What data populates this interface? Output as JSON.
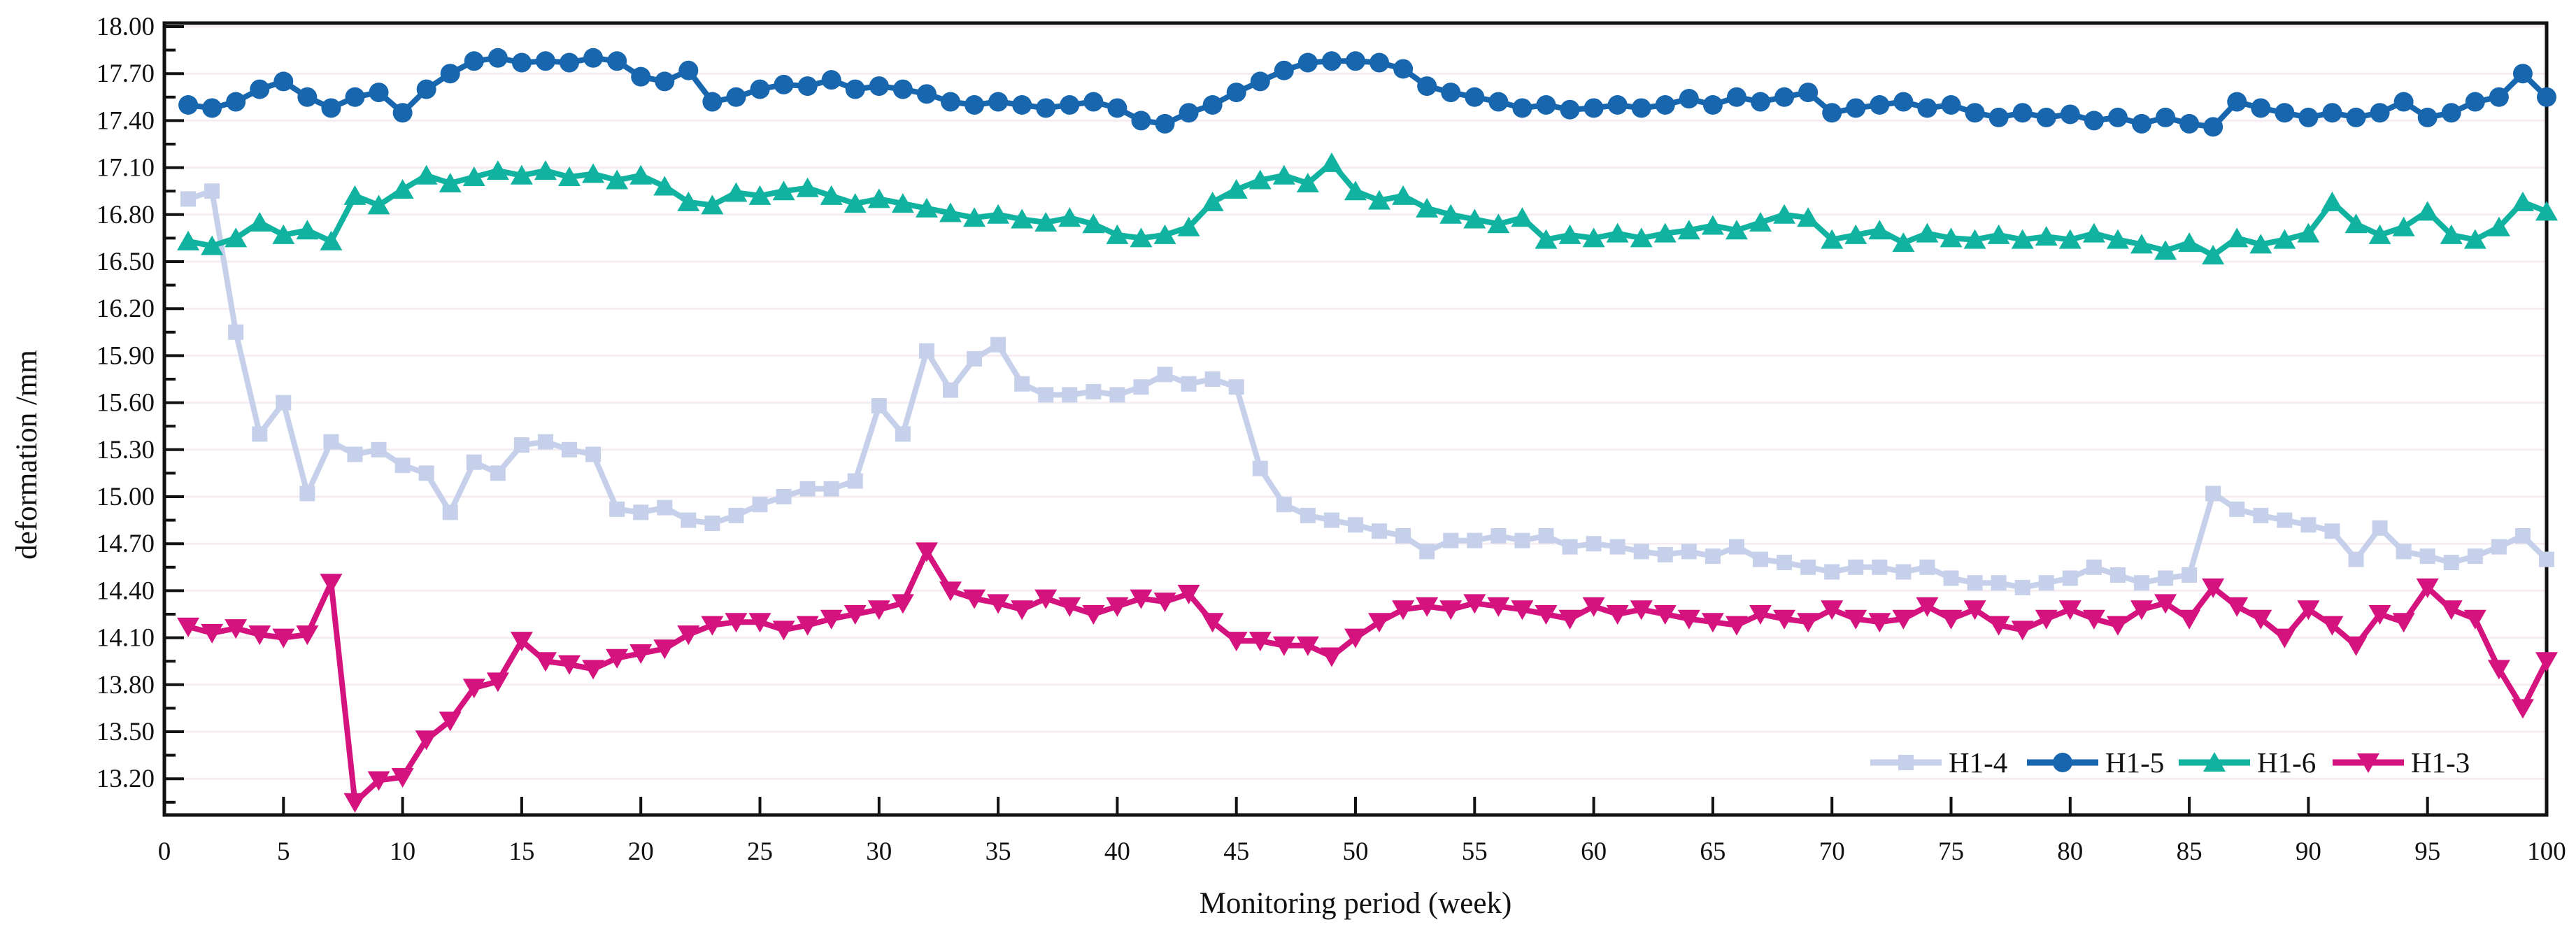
{
  "chart_data": {
    "type": "line",
    "title": "",
    "xlabel": "Monitoring period (week)",
    "ylabel": "deformation /mm",
    "xlim": [
      0,
      100
    ],
    "ylim": [
      12.96,
      18.0
    ],
    "x_tick_step": 5,
    "x_tick_labels": [
      "0",
      "5",
      "10",
      "15",
      "20",
      "25",
      "30",
      "35",
      "40",
      "45",
      "50",
      "55",
      "60",
      "65",
      "70",
      "75",
      "80",
      "85",
      "90",
      "95",
      "100"
    ],
    "y_tick_labels": [
      "18.00",
      "17.70",
      "17.40",
      "17.10",
      "16.80",
      "16.50",
      "16.20",
      "15.90",
      "15.60",
      "15.30",
      "15.00",
      "14.70",
      "14.40",
      "14.10",
      "13.80",
      "13.50",
      "13.20"
    ],
    "y_major_step": 0.3,
    "y_minor_step": 0.15,
    "grid": "faint-horizontal-major",
    "legend_position": "bottom-right-inside",
    "legend": [
      "H1-4",
      "H1-5",
      "H1-6",
      "H1-3"
    ],
    "x_start": 1,
    "x_step": 1,
    "series": [
      {
        "name": "H1-4",
        "color": "#c6d0ea",
        "marker": "square",
        "values": [
          16.9,
          16.95,
          16.05,
          15.4,
          15.6,
          15.02,
          15.35,
          15.27,
          15.3,
          15.2,
          15.15,
          14.9,
          15.22,
          15.15,
          15.33,
          15.35,
          15.3,
          15.27,
          14.92,
          14.9,
          14.93,
          14.85,
          14.83,
          14.88,
          14.95,
          15.0,
          15.05,
          15.05,
          15.1,
          15.58,
          15.4,
          15.93,
          15.68,
          15.88,
          15.97,
          15.72,
          15.65,
          15.65,
          15.67,
          15.65,
          15.7,
          15.78,
          15.72,
          15.75,
          15.7,
          15.18,
          14.95,
          14.88,
          14.85,
          14.82,
          14.78,
          14.75,
          14.65,
          14.72,
          14.72,
          14.75,
          14.72,
          14.75,
          14.68,
          14.7,
          14.68,
          14.65,
          14.63,
          14.65,
          14.62,
          14.68,
          14.6,
          14.58,
          14.55,
          14.52,
          14.55,
          14.55,
          14.52,
          14.55,
          14.48,
          14.45,
          14.45,
          14.42,
          14.45,
          14.48,
          14.55,
          14.5,
          14.45,
          14.48,
          14.5,
          15.02,
          14.92,
          14.88,
          14.85,
          14.82,
          14.78,
          14.6,
          14.8,
          14.65,
          14.62,
          14.58,
          14.62,
          14.68,
          14.75,
          14.6
        ]
      },
      {
        "name": "H1-5",
        "color": "#1766ae",
        "marker": "circle",
        "values": [
          17.5,
          17.48,
          17.52,
          17.6,
          17.65,
          17.55,
          17.48,
          17.55,
          17.58,
          17.45,
          17.6,
          17.7,
          17.78,
          17.8,
          17.77,
          17.78,
          17.77,
          17.8,
          17.78,
          17.68,
          17.65,
          17.72,
          17.52,
          17.55,
          17.6,
          17.63,
          17.62,
          17.66,
          17.6,
          17.62,
          17.6,
          17.57,
          17.52,
          17.5,
          17.52,
          17.5,
          17.48,
          17.5,
          17.52,
          17.48,
          17.4,
          17.38,
          17.45,
          17.5,
          17.58,
          17.65,
          17.72,
          17.77,
          17.78,
          17.78,
          17.77,
          17.73,
          17.62,
          17.58,
          17.55,
          17.52,
          17.48,
          17.5,
          17.47,
          17.48,
          17.5,
          17.48,
          17.5,
          17.54,
          17.5,
          17.55,
          17.52,
          17.55,
          17.58,
          17.45,
          17.48,
          17.5,
          17.52,
          17.48,
          17.5,
          17.45,
          17.42,
          17.45,
          17.42,
          17.44,
          17.4,
          17.42,
          17.38,
          17.42,
          17.38,
          17.36,
          17.52,
          17.48,
          17.45,
          17.42,
          17.45,
          17.42,
          17.45,
          17.52,
          17.42,
          17.45,
          17.52,
          17.55,
          17.7,
          17.55
        ]
      },
      {
        "name": "H1-6",
        "color": "#12b2a0",
        "marker": "triangle-up",
        "values": [
          16.63,
          16.6,
          16.65,
          16.75,
          16.67,
          16.7,
          16.63,
          16.92,
          16.86,
          16.96,
          17.05,
          17.0,
          17.04,
          17.08,
          17.05,
          17.08,
          17.04,
          17.06,
          17.02,
          17.05,
          16.98,
          16.88,
          16.86,
          16.94,
          16.92,
          16.95,
          16.97,
          16.92,
          16.87,
          16.9,
          16.87,
          16.84,
          16.81,
          16.78,
          16.8,
          16.77,
          16.75,
          16.78,
          16.74,
          16.67,
          16.65,
          16.67,
          16.72,
          16.88,
          16.96,
          17.02,
          17.05,
          17.0,
          17.13,
          16.95,
          16.89,
          16.92,
          16.84,
          16.8,
          16.77,
          16.74,
          16.78,
          16.64,
          16.67,
          16.65,
          16.68,
          16.65,
          16.68,
          16.7,
          16.73,
          16.7,
          16.75,
          16.8,
          16.78,
          16.64,
          16.67,
          16.7,
          16.62,
          16.68,
          16.65,
          16.64,
          16.67,
          16.64,
          16.66,
          16.64,
          16.68,
          16.64,
          16.61,
          16.57,
          16.62,
          16.54,
          16.65,
          16.61,
          16.64,
          16.68,
          16.88,
          16.74,
          16.67,
          16.72,
          16.82,
          16.67,
          16.64,
          16.72,
          16.88,
          16.82
        ]
      },
      {
        "name": "H1-3",
        "color": "#d4137f",
        "marker": "triangle-down",
        "values": [
          14.17,
          14.13,
          14.16,
          14.12,
          14.1,
          14.12,
          14.45,
          13.05,
          13.19,
          13.21,
          13.45,
          13.57,
          13.78,
          13.82,
          14.08,
          13.95,
          13.93,
          13.9,
          13.97,
          14.0,
          14.03,
          14.12,
          14.18,
          14.2,
          14.2,
          14.15,
          14.18,
          14.22,
          14.25,
          14.28,
          14.32,
          14.65,
          14.4,
          14.35,
          14.32,
          14.28,
          14.35,
          14.3,
          14.25,
          14.3,
          14.35,
          14.33,
          14.38,
          14.2,
          14.08,
          14.08,
          14.05,
          14.05,
          13.98,
          14.1,
          14.2,
          14.28,
          14.3,
          14.28,
          14.32,
          14.3,
          14.28,
          14.25,
          14.22,
          14.3,
          14.25,
          14.28,
          14.25,
          14.22,
          14.2,
          14.18,
          14.25,
          14.22,
          14.2,
          14.28,
          14.22,
          14.2,
          14.22,
          14.3,
          14.22,
          14.28,
          14.18,
          14.15,
          14.22,
          14.28,
          14.22,
          14.18,
          14.28,
          14.32,
          14.22,
          14.42,
          14.3,
          14.22,
          14.1,
          14.28,
          14.18,
          14.05,
          14.25,
          14.2,
          14.42,
          14.28,
          14.22,
          13.9,
          13.65,
          13.95
        ]
      }
    ],
    "axis_color": "#111111",
    "gridline_color": "#f6edf2"
  }
}
